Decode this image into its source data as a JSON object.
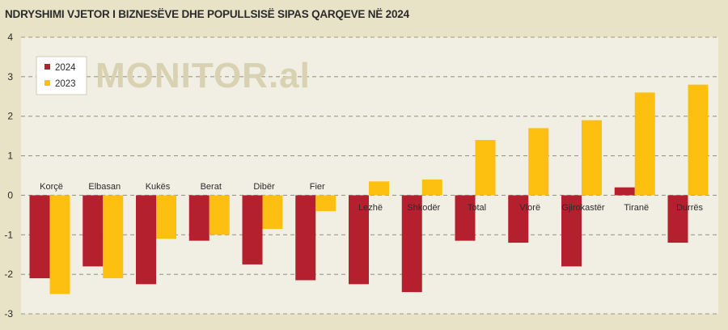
{
  "chart_data": {
    "type": "bar",
    "title": "NDRYSHIMI VJETOR I BIZNESËVE DHE POPULLSISË SIPAS QARQEVE NË 2024",
    "watermark": "MONITOR.al",
    "categories": [
      "Korçë",
      "Elbasan",
      "Kukës",
      "Berat",
      "Dibër",
      "Fier",
      "Lezhë",
      "Shkodër",
      "Total",
      "Vlorë",
      "Gjirokastër",
      "Tiranë",
      "Durrës"
    ],
    "series": [
      {
        "name": "2024",
        "color": "#b5202e",
        "values": [
          -2.1,
          -1.8,
          -2.25,
          -1.15,
          -1.75,
          -2.15,
          -2.25,
          -2.45,
          -1.15,
          -1.2,
          -1.8,
          0.2,
          -1.2
        ]
      },
      {
        "name": "2023",
        "color": "#fdc010",
        "values": [
          -2.5,
          -2.1,
          -1.1,
          -1.0,
          -0.85,
          -0.4,
          0.35,
          0.4,
          1.4,
          1.7,
          1.9,
          2.6,
          2.8
        ]
      }
    ],
    "yticks": [
      "4",
      "3",
      "2",
      "1",
      "0",
      "-1",
      "-2",
      "-3"
    ],
    "ylim": [
      -3,
      4
    ],
    "grid": true,
    "legend_position": "top-left"
  }
}
